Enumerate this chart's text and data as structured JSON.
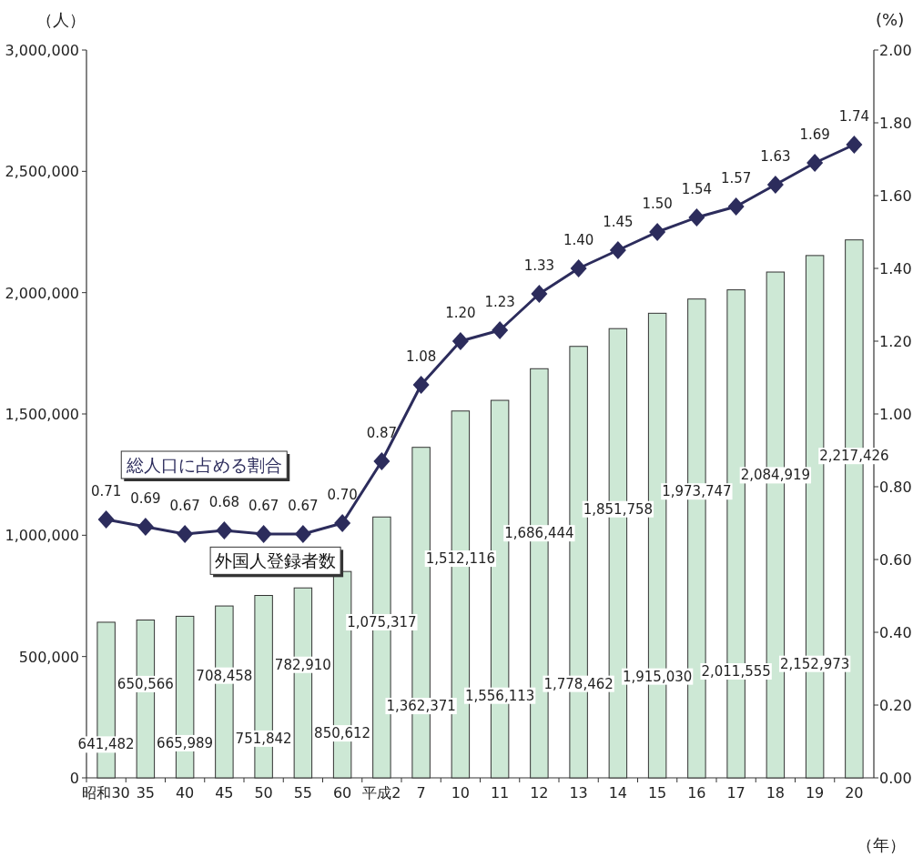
{
  "chart_data": {
    "type": "bar",
    "categories": [
      "昭和30",
      "35",
      "40",
      "45",
      "50",
      "55",
      "60",
      "平成2",
      "7",
      "10",
      "11",
      "12",
      "13",
      "14",
      "15",
      "16",
      "17",
      "18",
      "19",
      "20"
    ],
    "ylabel": "（人）",
    "y2label": "(%)",
    "xlabel": "（年）",
    "ylim": [
      0,
      3000000
    ],
    "yticks": [
      {
        "value": 0,
        "label": "0"
      },
      {
        "value": 500000,
        "label": "500,000"
      },
      {
        "value": 1000000,
        "label": "1,000,000"
      },
      {
        "value": 1500000,
        "label": "1,500,000"
      },
      {
        "value": 2000000,
        "label": "2,000,000"
      },
      {
        "value": 2500000,
        "label": "2,500,000"
      },
      {
        "value": 3000000,
        "label": "3,000,000"
      }
    ],
    "y2lim": [
      0,
      2
    ],
    "y2ticks": [
      {
        "value": 0,
        "label": "0.00"
      },
      {
        "value": 0.2,
        "label": "0.20"
      },
      {
        "value": 0.4,
        "label": "0.40"
      },
      {
        "value": 0.6,
        "label": "0.60"
      },
      {
        "value": 0.8,
        "label": "0.80"
      },
      {
        "value": 1,
        "label": "1.00"
      },
      {
        "value": 1.2,
        "label": "1.20"
      },
      {
        "value": 1.4,
        "label": "1.40"
      },
      {
        "value": 1.6,
        "label": "1.60"
      },
      {
        "value": 1.8,
        "label": "1.80"
      },
      {
        "value": 2,
        "label": "2.00"
      }
    ],
    "series": [
      {
        "name": "外国人登録者数",
        "color": "#cde8d5",
        "values": [
          641482,
          650566,
          665989,
          708458,
          751842,
          782910,
          850612,
          1075317,
          1362371,
          1512116,
          1556113,
          1686444,
          1778462,
          1851758,
          1915030,
          1973747,
          2011555,
          2084919,
          2152973,
          2217426
        ],
        "value_labels": [
          "641,482",
          "650,566",
          "665,989",
          "708,458",
          "751,842",
          "782,910",
          "850,612",
          "1,075,317",
          "1,362,371",
          "1,512,116",
          "1,556,113",
          "1,686,444",
          "1,778,462",
          "1,851,758",
          "1,915,030",
          "1,973,747",
          "2,011,555",
          "2,084,919",
          "2,152,973",
          "2,217,426"
        ]
      },
      {
        "name": "総人口に占める割合",
        "type": "line",
        "axis": "y2",
        "color": "#2c2c5c",
        "marker": "diamond",
        "values": [
          0.71,
          0.69,
          0.67,
          0.68,
          0.67,
          0.67,
          0.7,
          0.87,
          1.08,
          1.2,
          1.23,
          1.33,
          1.4,
          1.45,
          1.5,
          1.54,
          1.57,
          1.63,
          1.69,
          1.74
        ],
        "value_labels": [
          "0.71",
          "0.69",
          "0.67",
          "0.68",
          "0.67",
          "0.67",
          "0.70",
          "0.87",
          "1.08",
          "1.20",
          "1.23",
          "1.33",
          "1.40",
          "1.45",
          "1.50",
          "1.54",
          "1.57",
          "1.63",
          "1.69",
          "1.74"
        ]
      }
    ],
    "grid": false
  }
}
